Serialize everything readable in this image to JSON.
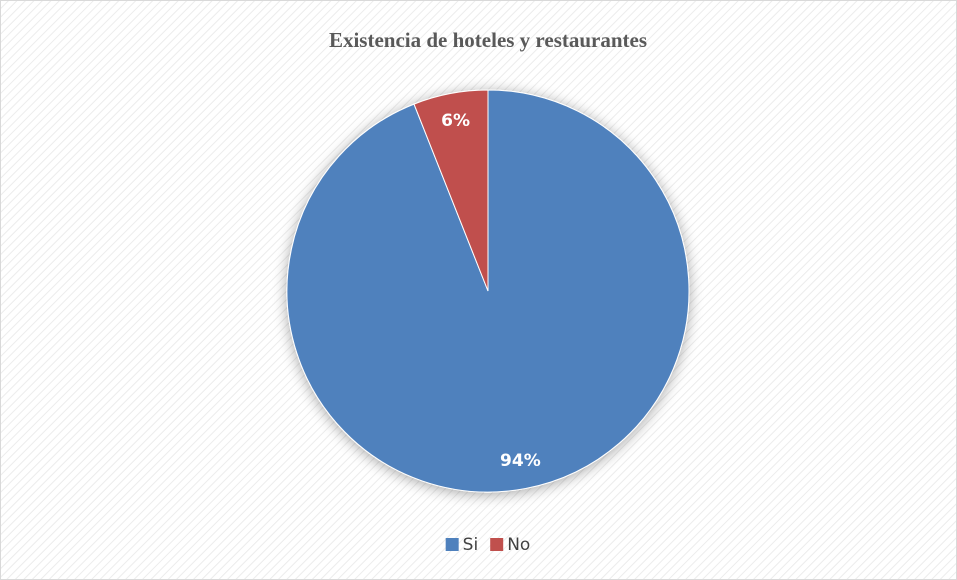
{
  "chart_data": {
    "type": "pie",
    "title": "Existencia de hoteles y restaurantes",
    "categories": [
      "Si",
      "No"
    ],
    "values": [
      94,
      6
    ],
    "value_labels": [
      "94%",
      "6%"
    ],
    "colors": [
      "#4f81bd",
      "#c0504d"
    ],
    "legend": "bottom"
  }
}
